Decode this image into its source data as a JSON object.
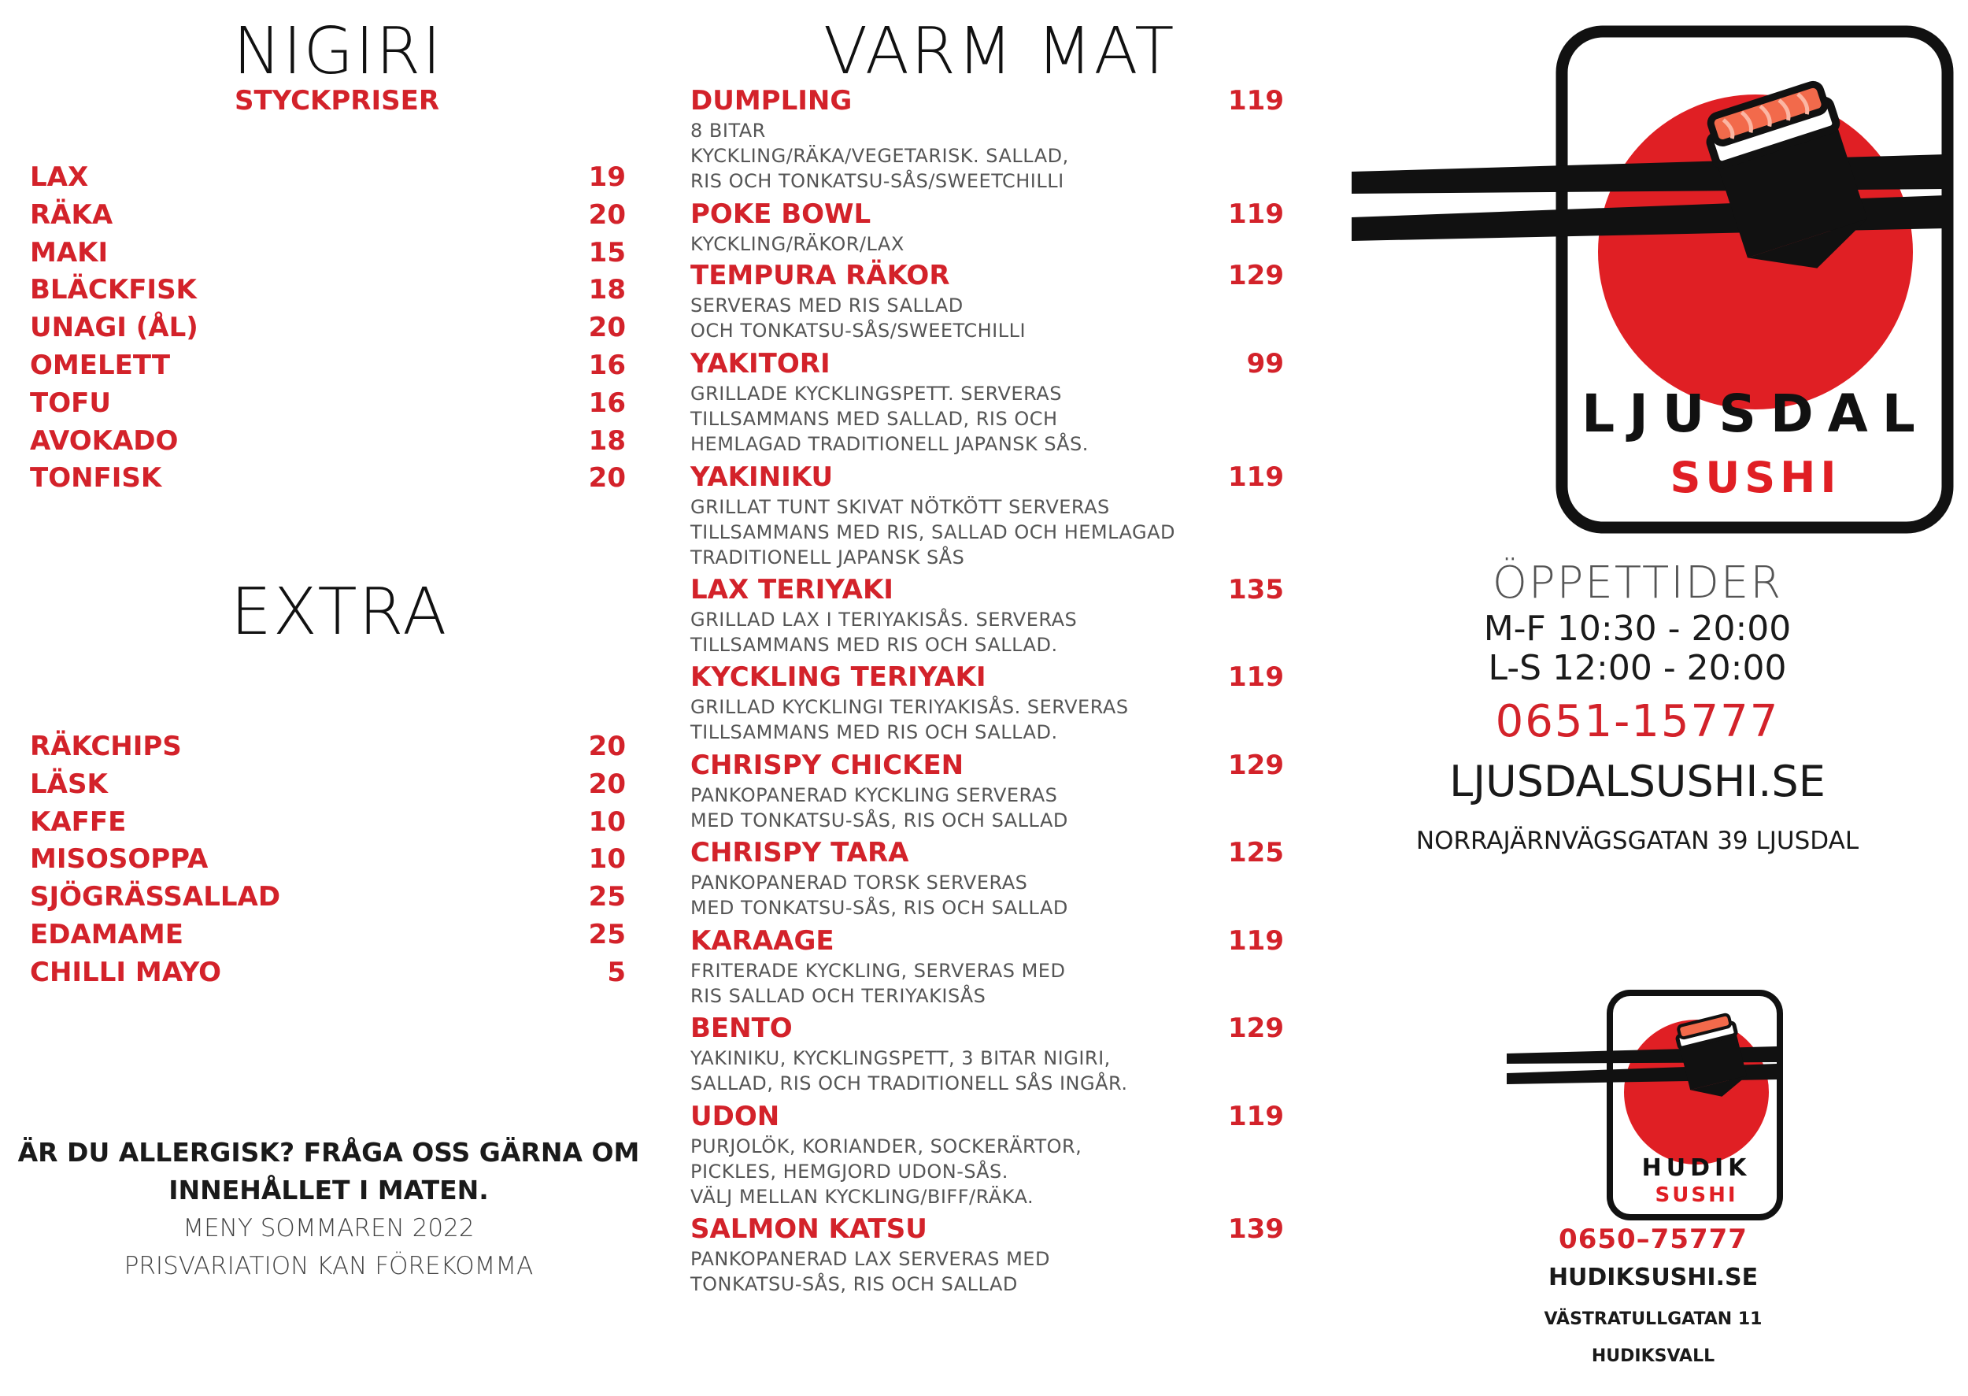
{
  "nigiri": {
    "title": "NIGIRI",
    "subtitle": "STYCKPRISER",
    "items": [
      {
        "name": "LAX",
        "price": "19"
      },
      {
        "name": "RÄKA",
        "price": "20"
      },
      {
        "name": "MAKI",
        "price": "15"
      },
      {
        "name": "BLÄCKFISK",
        "price": "18"
      },
      {
        "name": "UNAGI (ÅL)",
        "price": "20"
      },
      {
        "name": "OMELETT",
        "price": "16"
      },
      {
        "name": "TOFU",
        "price": "16"
      },
      {
        "name": "AVOKADO",
        "price": "18"
      },
      {
        "name": "TONFISK",
        "price": "20"
      }
    ]
  },
  "extra": {
    "title": "EXTRA",
    "items": [
      {
        "name": "RÄKCHIPS",
        "price": "20"
      },
      {
        "name": "LÄSK",
        "price": "20"
      },
      {
        "name": "KAFFE",
        "price": "10"
      },
      {
        "name": "MISOSOPPA",
        "price": "10"
      },
      {
        "name": "SJÖGRÄSSALLAD",
        "price": "25"
      },
      {
        "name": "EDAMAME",
        "price": "25"
      },
      {
        "name": "CHILLI MAYO",
        "price": "5"
      }
    ]
  },
  "notice": {
    "line1": "ÄR DU ALLERGISK? FRÅGA OSS GÄRNA OM",
    "line2": "INNEHÅLLET I MATEN.",
    "line3": "MENY SOMMAREN 2022",
    "line4": "PRISVARIATION KAN FÖREKOMMA"
  },
  "varm_mat": {
    "title": "VARM MAT",
    "items": [
      {
        "name": "DUMPLING",
        "price": "119",
        "desc": "8 BITAR\nKYCKLING/RÄKA/VEGETARISK. SALLAD,\nRIS OCH TONKATSU-SÅS/SWEETCHILLI"
      },
      {
        "name": "POKE BOWL",
        "price": "119",
        "desc": "KYCKLING/RÄKOR/LAX"
      },
      {
        "name": "TEMPURA RÄKOR",
        "price": "129",
        "desc": "SERVERAS MED RIS SALLAD\nOCH TONKATSU-SÅS/SWEETCHILLI"
      },
      {
        "name": "YAKITORI",
        "price": "99",
        "desc": "GRILLADE KYCKLINGSPETT. SERVERAS\nTILLSAMMANS MED SALLAD, RIS OCH\nHEMLAGAD TRADITIONELL JAPANSK SÅS."
      },
      {
        "name": "YAKINIKU",
        "price": "119",
        "desc": "GRILLAT TUNT SKIVAT NÖTKÖTT SERVERAS\nTILLSAMMANS MED RIS, SALLAD OCH HEMLAGAD\nTRADITIONELL JAPANSK SÅS"
      },
      {
        "name": "LAX TERIYAKI",
        "price": "135",
        "desc": "GRILLAD LAX I TERIYAKISÅS. SERVERAS\nTILLSAMMANS MED RIS OCH SALLAD."
      },
      {
        "name": "KYCKLING TERIYAKI",
        "price": "119",
        "desc": "GRILLAD KYCKLINGI TERIYAKISÅS. SERVERAS\nTILLSAMMANS MED RIS OCH SALLAD."
      },
      {
        "name": "CHRISPY CHICKEN",
        "price": "129",
        "desc": "PANKOPANERAD KYCKLING SERVERAS\nMED TONKATSU-SÅS, RIS OCH SALLAD"
      },
      {
        "name": "CHRISPY TARA",
        "price": "125",
        "desc": "PANKOPANERAD TORSK SERVERAS\nMED TONKATSU-SÅS, RIS OCH SALLAD"
      },
      {
        "name": "KARAAGE",
        "price": "119",
        "desc": "FRITERADE KYCKLING, SERVERAS MED\nRIS SALLAD OCH TERIYAKISÅS"
      },
      {
        "name": "BENTO",
        "price": "129",
        "desc": "YAKINIKU, KYCKLINGSPETT, 3 BITAR NIGIRI,\nSALLAD, RIS OCH TRADITIONELL SÅS INGÅR."
      },
      {
        "name": "UDON",
        "price": "119",
        "desc": "PURJOLÖK, KORIANDER, SOCKERÄRTOR,\nPICKLES, HEMGJORD UDON-SÅS.\nVÄLJ MELLAN KYCKLING/BIFF/RÄKA."
      },
      {
        "name": "SALMON KATSU",
        "price": "139",
        "desc": "PANKOPANERAD LAX SERVERAS MED\nTONKATSU-SÅS, RIS OCH SALLAD"
      }
    ]
  },
  "ljusdal": {
    "logo_top": "LJUSDAL",
    "logo_bottom": "SUSHI",
    "hours_title": "ÖPPETTIDER",
    "hours_weekday": "M-F 10:30 - 20:00",
    "hours_weekend": "L-S 12:00 - 20:00",
    "phone": "0651-15777",
    "website": "LJUSDALSUSHI.SE",
    "address": "NORRAJÄRNVÄGSGATAN 39 LJUSDAL"
  },
  "hudik": {
    "logo_top": "HUDIK",
    "logo_bottom": "SUSHI",
    "phone": "0650–75777",
    "website": "HUDIKSUSHI.SE",
    "street": "VÄSTRATULLGATAN 11",
    "city": "HUDIKSVALL"
  },
  "colors": {
    "accent": "#d3222a",
    "salmon": "#f26a4b",
    "text": "#111111",
    "muted": "#555555"
  }
}
